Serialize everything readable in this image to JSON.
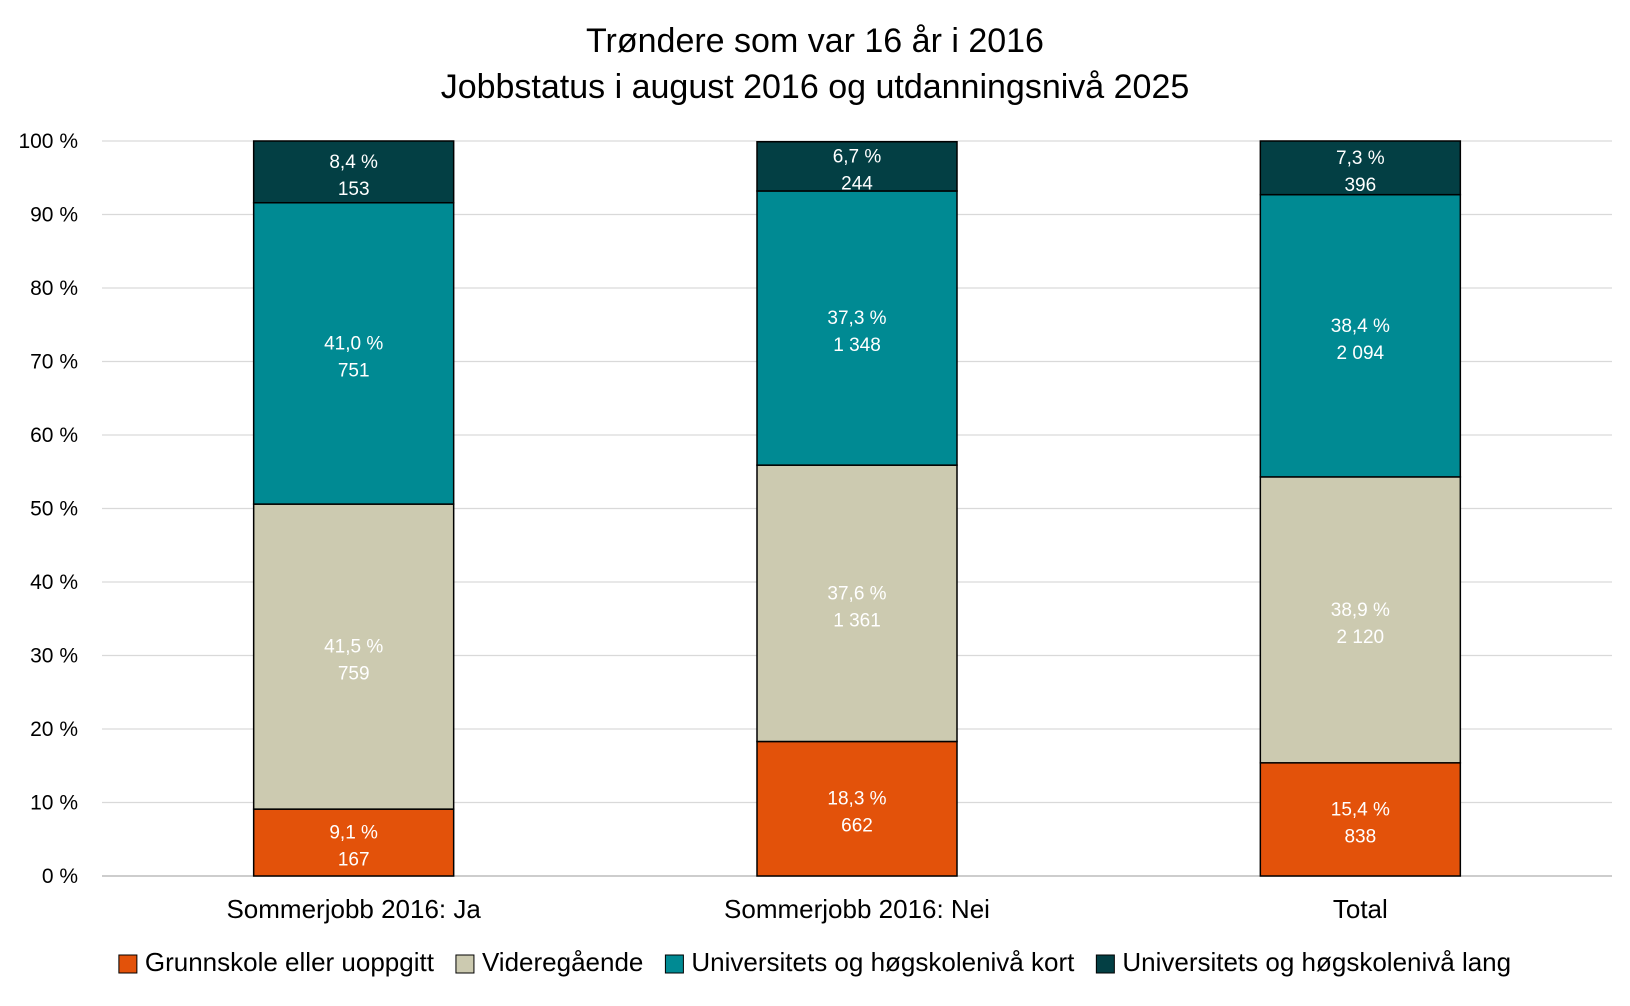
{
  "chart_data": {
    "type": "bar",
    "stacked": true,
    "percent_stacked": true,
    "title": [
      "Trøndere  som var 16 år i 2016",
      "Jobbstatus i  august 2016 og utdanningsnivå  2025"
    ],
    "xlabel": "",
    "ylabel": "",
    "ylim": [
      0,
      100
    ],
    "yticks": [
      "0 %",
      "10 %",
      "20 %",
      "30 %",
      "40 %",
      "50 %",
      "60 %",
      "70 %",
      "80 %",
      "90 %",
      "100 %"
    ],
    "grid": true,
    "legend_position": "bottom",
    "categories": [
      "Sommerjobb 2016: Ja",
      "Sommerjobb 2016: Nei",
      "Total"
    ],
    "series": [
      {
        "name": "Grunnskole eller uoppgitt",
        "color": "#E3520A",
        "values": [
          9.1,
          18.3,
          15.4
        ],
        "pct_labels": [
          "9,1 %",
          "18,3 %",
          "15,4 %"
        ],
        "counts": [
          "167",
          "662",
          "838"
        ]
      },
      {
        "name": "Videregående",
        "color": "#CCCAB0",
        "values": [
          41.5,
          37.6,
          38.9
        ],
        "pct_labels": [
          "41,5 %",
          "37,6 %",
          "38,9 %"
        ],
        "counts": [
          "759",
          "1 361",
          "2 120"
        ]
      },
      {
        "name": "Universitets og høgskolenivå kort",
        "color": "#008A93",
        "values": [
          41.0,
          37.3,
          38.4
        ],
        "pct_labels": [
          "41,0 %",
          "37,3 %",
          "38,4 %"
        ],
        "counts": [
          "751",
          "1 348",
          "2 094"
        ]
      },
      {
        "name": "Universitets og høgskolenivå lang",
        "color": "#033F44",
        "values": [
          8.4,
          6.7,
          7.3
        ],
        "pct_labels": [
          "8,4 %",
          "6,7 %",
          "7,3 %"
        ],
        "counts": [
          "153",
          "244",
          "396"
        ]
      }
    ]
  }
}
